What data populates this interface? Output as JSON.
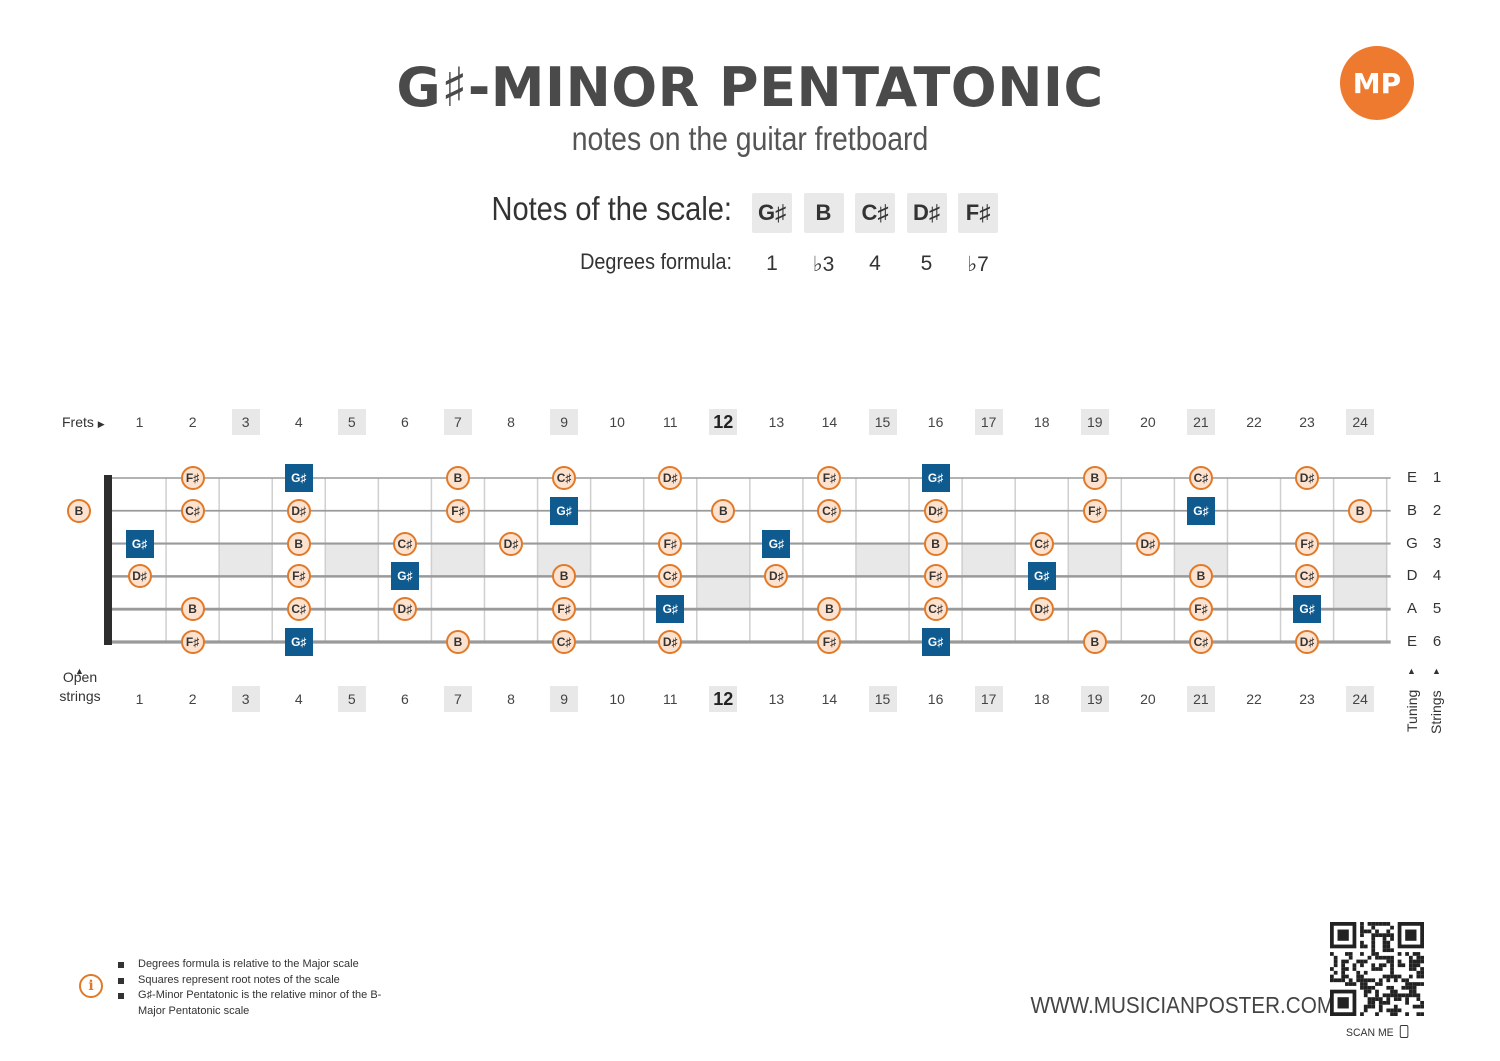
{
  "header": {
    "title": "G♯-MINOR PENTATONIC",
    "subtitle": "notes on the guitar fretboard",
    "logo_text": "MP"
  },
  "scale": {
    "notes_label": "Notes of the scale:",
    "notes": [
      "G♯",
      "B",
      "C♯",
      "D♯",
      "F♯"
    ],
    "degrees_label": "Degrees formula:",
    "degrees": [
      "1",
      "♭3",
      "4",
      "5",
      "♭7"
    ]
  },
  "fretboard": {
    "frets_label": "Frets",
    "open_strings_label": "Open strings",
    "tuning_label": "Tuning",
    "strings_label": "Strings",
    "fret_numbers": [
      "1",
      "2",
      "3",
      "4",
      "5",
      "6",
      "7",
      "8",
      "9",
      "10",
      "11",
      "12",
      "13",
      "14",
      "15",
      "16",
      "17",
      "18",
      "19",
      "20",
      "21",
      "22",
      "23",
      "24"
    ],
    "inlay_frets": [
      3,
      5,
      7,
      9,
      12,
      15,
      17,
      19,
      21,
      24
    ],
    "double_inlay_frets": [
      12,
      24
    ],
    "strings": [
      {
        "number": "1",
        "tuning": "E",
        "open_note": null,
        "notes": [
          {
            "fret": 2,
            "note": "F♯"
          },
          {
            "fret": 4,
            "note": "G♯",
            "root": true
          },
          {
            "fret": 7,
            "note": "B"
          },
          {
            "fret": 9,
            "note": "C♯"
          },
          {
            "fret": 11,
            "note": "D♯"
          },
          {
            "fret": 14,
            "note": "F♯"
          },
          {
            "fret": 16,
            "note": "G♯",
            "root": true
          },
          {
            "fret": 19,
            "note": "B"
          },
          {
            "fret": 21,
            "note": "C♯"
          },
          {
            "fret": 23,
            "note": "D♯"
          }
        ]
      },
      {
        "number": "2",
        "tuning": "B",
        "open_note": "B",
        "notes": [
          {
            "fret": 2,
            "note": "C♯"
          },
          {
            "fret": 4,
            "note": "D♯"
          },
          {
            "fret": 7,
            "note": "F♯"
          },
          {
            "fret": 9,
            "note": "G♯",
            "root": true
          },
          {
            "fret": 12,
            "note": "B"
          },
          {
            "fret": 14,
            "note": "C♯"
          },
          {
            "fret": 16,
            "note": "D♯"
          },
          {
            "fret": 19,
            "note": "F♯"
          },
          {
            "fret": 21,
            "note": "G♯",
            "root": true
          },
          {
            "fret": 24,
            "note": "B"
          }
        ]
      },
      {
        "number": "3",
        "tuning": "G",
        "open_note": null,
        "notes": [
          {
            "fret": 1,
            "note": "G♯",
            "root": true
          },
          {
            "fret": 4,
            "note": "B"
          },
          {
            "fret": 6,
            "note": "C♯"
          },
          {
            "fret": 8,
            "note": "D♯"
          },
          {
            "fret": 11,
            "note": "F♯"
          },
          {
            "fret": 13,
            "note": "G♯",
            "root": true
          },
          {
            "fret": 16,
            "note": "B"
          },
          {
            "fret": 18,
            "note": "C♯"
          },
          {
            "fret": 20,
            "note": "D♯"
          },
          {
            "fret": 23,
            "note": "F♯"
          }
        ]
      },
      {
        "number": "4",
        "tuning": "D",
        "open_note": null,
        "notes": [
          {
            "fret": 1,
            "note": "D♯"
          },
          {
            "fret": 4,
            "note": "F♯"
          },
          {
            "fret": 6,
            "note": "G♯",
            "root": true
          },
          {
            "fret": 9,
            "note": "B"
          },
          {
            "fret": 11,
            "note": "C♯"
          },
          {
            "fret": 13,
            "note": "D♯"
          },
          {
            "fret": 16,
            "note": "F♯"
          },
          {
            "fret": 18,
            "note": "G♯",
            "root": true
          },
          {
            "fret": 21,
            "note": "B"
          },
          {
            "fret": 23,
            "note": "C♯"
          }
        ]
      },
      {
        "number": "5",
        "tuning": "A",
        "open_note": null,
        "notes": [
          {
            "fret": 2,
            "note": "B"
          },
          {
            "fret": 4,
            "note": "C♯"
          },
          {
            "fret": 6,
            "note": "D♯"
          },
          {
            "fret": 9,
            "note": "F♯"
          },
          {
            "fret": 11,
            "note": "G♯",
            "root": true
          },
          {
            "fret": 14,
            "note": "B"
          },
          {
            "fret": 16,
            "note": "C♯"
          },
          {
            "fret": 18,
            "note": "D♯"
          },
          {
            "fret": 21,
            "note": "F♯"
          },
          {
            "fret": 23,
            "note": "G♯",
            "root": true
          }
        ]
      },
      {
        "number": "6",
        "tuning": "E",
        "open_note": null,
        "notes": [
          {
            "fret": 2,
            "note": "F♯"
          },
          {
            "fret": 4,
            "note": "G♯",
            "root": true
          },
          {
            "fret": 7,
            "note": "B"
          },
          {
            "fret": 9,
            "note": "C♯"
          },
          {
            "fret": 11,
            "note": "D♯"
          },
          {
            "fret": 14,
            "note": "F♯"
          },
          {
            "fret": 16,
            "note": "G♯",
            "root": true
          },
          {
            "fret": 19,
            "note": "B"
          },
          {
            "fret": 21,
            "note": "C♯"
          },
          {
            "fret": 23,
            "note": "D♯"
          }
        ]
      }
    ]
  },
  "footnotes": [
    "Degrees formula is relative to the Major scale",
    "Squares represent root notes of the scale",
    "G♯-Minor Pentatonic is the relative minor of the B-Major Pentatonic scale"
  ],
  "footer": {
    "website": "WWW.MUSICIANPOSTER.COM",
    "scan_me": "SCAN ME"
  },
  "colors": {
    "accent": "#e07a2a",
    "note_fill": "#fde3cf",
    "root_fill": "#0f5a8f",
    "logo": "#ee7a2f",
    "inlay": "#e8e8e8"
  }
}
